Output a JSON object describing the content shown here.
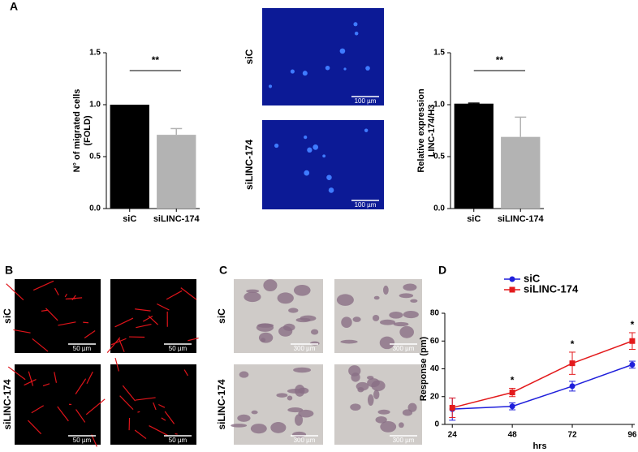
{
  "figure": {
    "panel_labels": [
      "A",
      "B",
      "C",
      "D"
    ],
    "images": [
      {
        "row_labels": [
          "siC",
          "siLINC-174"
        ],
        "scale_bar": "100 µm"
      },
      {
        "row_labels": [
          "siC",
          "siLINC-174"
        ],
        "scale_bar": "50 µm"
      },
      {
        "row_labels": [
          "siC",
          "siLINC-174"
        ],
        "scale_bar": "300 µm"
      }
    ]
  },
  "chart_data": [
    {
      "type": "bar",
      "y_label": [
        "N° of migrated cells",
        "(FOLD)"
      ],
      "categories": [
        "siC",
        "siLINC-174"
      ],
      "values": [
        1.0,
        0.71
      ],
      "errors": [
        null,
        0.06
      ],
      "colors": [
        "#000000",
        "#b3b3b3"
      ],
      "significance": "**",
      "ylim": [
        0,
        1.5
      ],
      "yticks": [
        {
          "value": 0,
          "label": "0.0"
        },
        0.5,
        {
          "value": 1,
          "label": "1.0"
        },
        1.5
      ]
    },
    {
      "type": "bar",
      "y_label": [
        "Relative expression",
        "LINC-174/H3"
      ],
      "categories": [
        "siC",
        "siLINC-174"
      ],
      "values": [
        1.01,
        0.69
      ],
      "errors": [
        0.005,
        0.19
      ],
      "colors": [
        "#000000",
        "#b3b3b3"
      ],
      "significance": "**",
      "ylim": [
        0,
        1.5
      ],
      "yticks": [
        {
          "value": 0,
          "label": "0.0"
        },
        0.5,
        {
          "value": 1,
          "label": "1.0"
        },
        1.5
      ]
    },
    {
      "type": "line",
      "x_label": "hrs",
      "y_label": "Response (pm)",
      "x": [
        24,
        48,
        72,
        96
      ],
      "series": [
        {
          "name": "siC",
          "color": "#1f1fdb",
          "marker": "circle",
          "values": [
            11,
            13,
            27.5,
            43
          ],
          "errors": [
            8,
            2.5,
            3.5,
            2.5
          ]
        },
        {
          "name": "siLINC-174",
          "color": "#e31a1c",
          "marker": "square",
          "values": [
            12,
            23,
            44,
            60
          ],
          "errors": [
            7,
            3,
            8,
            6
          ]
        }
      ],
      "significance": [
        null,
        "*",
        "*",
        "*"
      ],
      "xlim": [
        21,
        97
      ],
      "xticks": [
        24,
        48,
        72,
        96
      ],
      "ylim": [
        0,
        80
      ],
      "yticks": [
        0,
        20,
        40,
        60,
        80
      ]
    }
  ]
}
